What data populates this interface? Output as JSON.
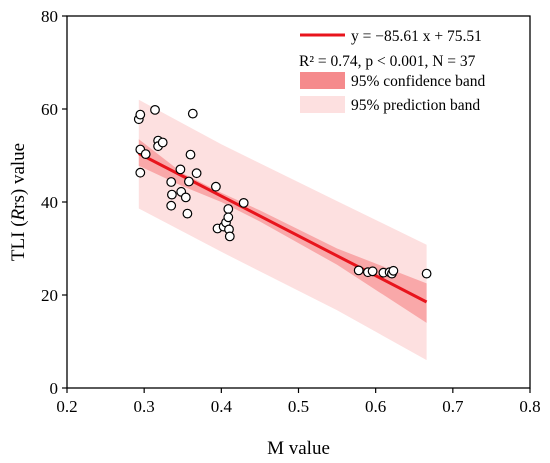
{
  "chart_data": {
    "type": "scatter",
    "xlabel": "M value",
    "ylabel_parts": {
      "before": "TLI (",
      "italic": "R",
      "after": "rs) value"
    },
    "xlim": [
      0.2,
      0.8
    ],
    "ylim": [
      0,
      80
    ],
    "xticks": [
      0.2,
      0.3,
      0.4,
      0.5,
      0.6,
      0.7,
      0.8
    ],
    "xtick_labels": [
      "0.2",
      "0.3",
      "0.4",
      "0.5",
      "0.6",
      "0.7",
      "0.8"
    ],
    "yticks": [
      0,
      20,
      40,
      60,
      80
    ],
    "ytick_labels": [
      "0",
      "20",
      "40",
      "60",
      "80"
    ],
    "points": [
      [
        0.293,
        57.8
      ],
      [
        0.295,
        58.8
      ],
      [
        0.295,
        51.3
      ],
      [
        0.295,
        46.3
      ],
      [
        0.302,
        50.3
      ],
      [
        0.314,
        59.8
      ],
      [
        0.318,
        53.2
      ],
      [
        0.318,
        52.0
      ],
      [
        0.324,
        52.8
      ],
      [
        0.335,
        44.3
      ],
      [
        0.336,
        41.6
      ],
      [
        0.335,
        39.2
      ],
      [
        0.347,
        47.0
      ],
      [
        0.348,
        42.2
      ],
      [
        0.354,
        41.0
      ],
      [
        0.356,
        37.5
      ],
      [
        0.358,
        44.4
      ],
      [
        0.36,
        50.2
      ],
      [
        0.363,
        59.0
      ],
      [
        0.368,
        46.2
      ],
      [
        0.393,
        43.3
      ],
      [
        0.395,
        34.3
      ],
      [
        0.403,
        34.7
      ],
      [
        0.406,
        35.6
      ],
      [
        0.409,
        38.5
      ],
      [
        0.409,
        36.7
      ],
      [
        0.41,
        34.1
      ],
      [
        0.411,
        32.6
      ],
      [
        0.429,
        39.8
      ],
      [
        0.578,
        25.3
      ],
      [
        0.59,
        24.9
      ],
      [
        0.596,
        25.1
      ],
      [
        0.61,
        24.8
      ],
      [
        0.618,
        24.9
      ],
      [
        0.621,
        24.6
      ],
      [
        0.623,
        25.2
      ],
      [
        0.666,
        24.6
      ]
    ],
    "fit": {
      "slope": -85.61,
      "intercept": 75.51,
      "x_range": [
        0.293,
        0.666
      ]
    },
    "confidence_band": [
      [
        0.293,
        47.8,
        53.5
      ],
      [
        0.35,
        43.4,
        46.2
      ],
      [
        0.4,
        40.0,
        42.0
      ],
      [
        0.45,
        35.8,
        38.2
      ],
      [
        0.55,
        26.5,
        30.0
      ],
      [
        0.666,
        14.0,
        22.5
      ]
    ],
    "prediction_band": [
      [
        0.293,
        38.6,
        62.0
      ],
      [
        0.4,
        29.3,
        52.4
      ],
      [
        0.55,
        16.7,
        40.2
      ],
      [
        0.666,
        6.0,
        30.8
      ]
    ],
    "legend": {
      "placement": "top-right",
      "fit_label": "y = −85.61 x + 75.51",
      "stats_label": "R² = 0.74, p < 0.001, N = 37",
      "confidence_label": "95% confidence band",
      "prediction_label": "95% prediction band"
    },
    "colors": {
      "fit_line": "#e8141c",
      "confidence_band": "#f58a8c",
      "confidence_band_fill": "#f9a8a9",
      "prediction_band": "#fde0e0",
      "point_edge": "#000000",
      "point_face": "#ffffff"
    }
  }
}
